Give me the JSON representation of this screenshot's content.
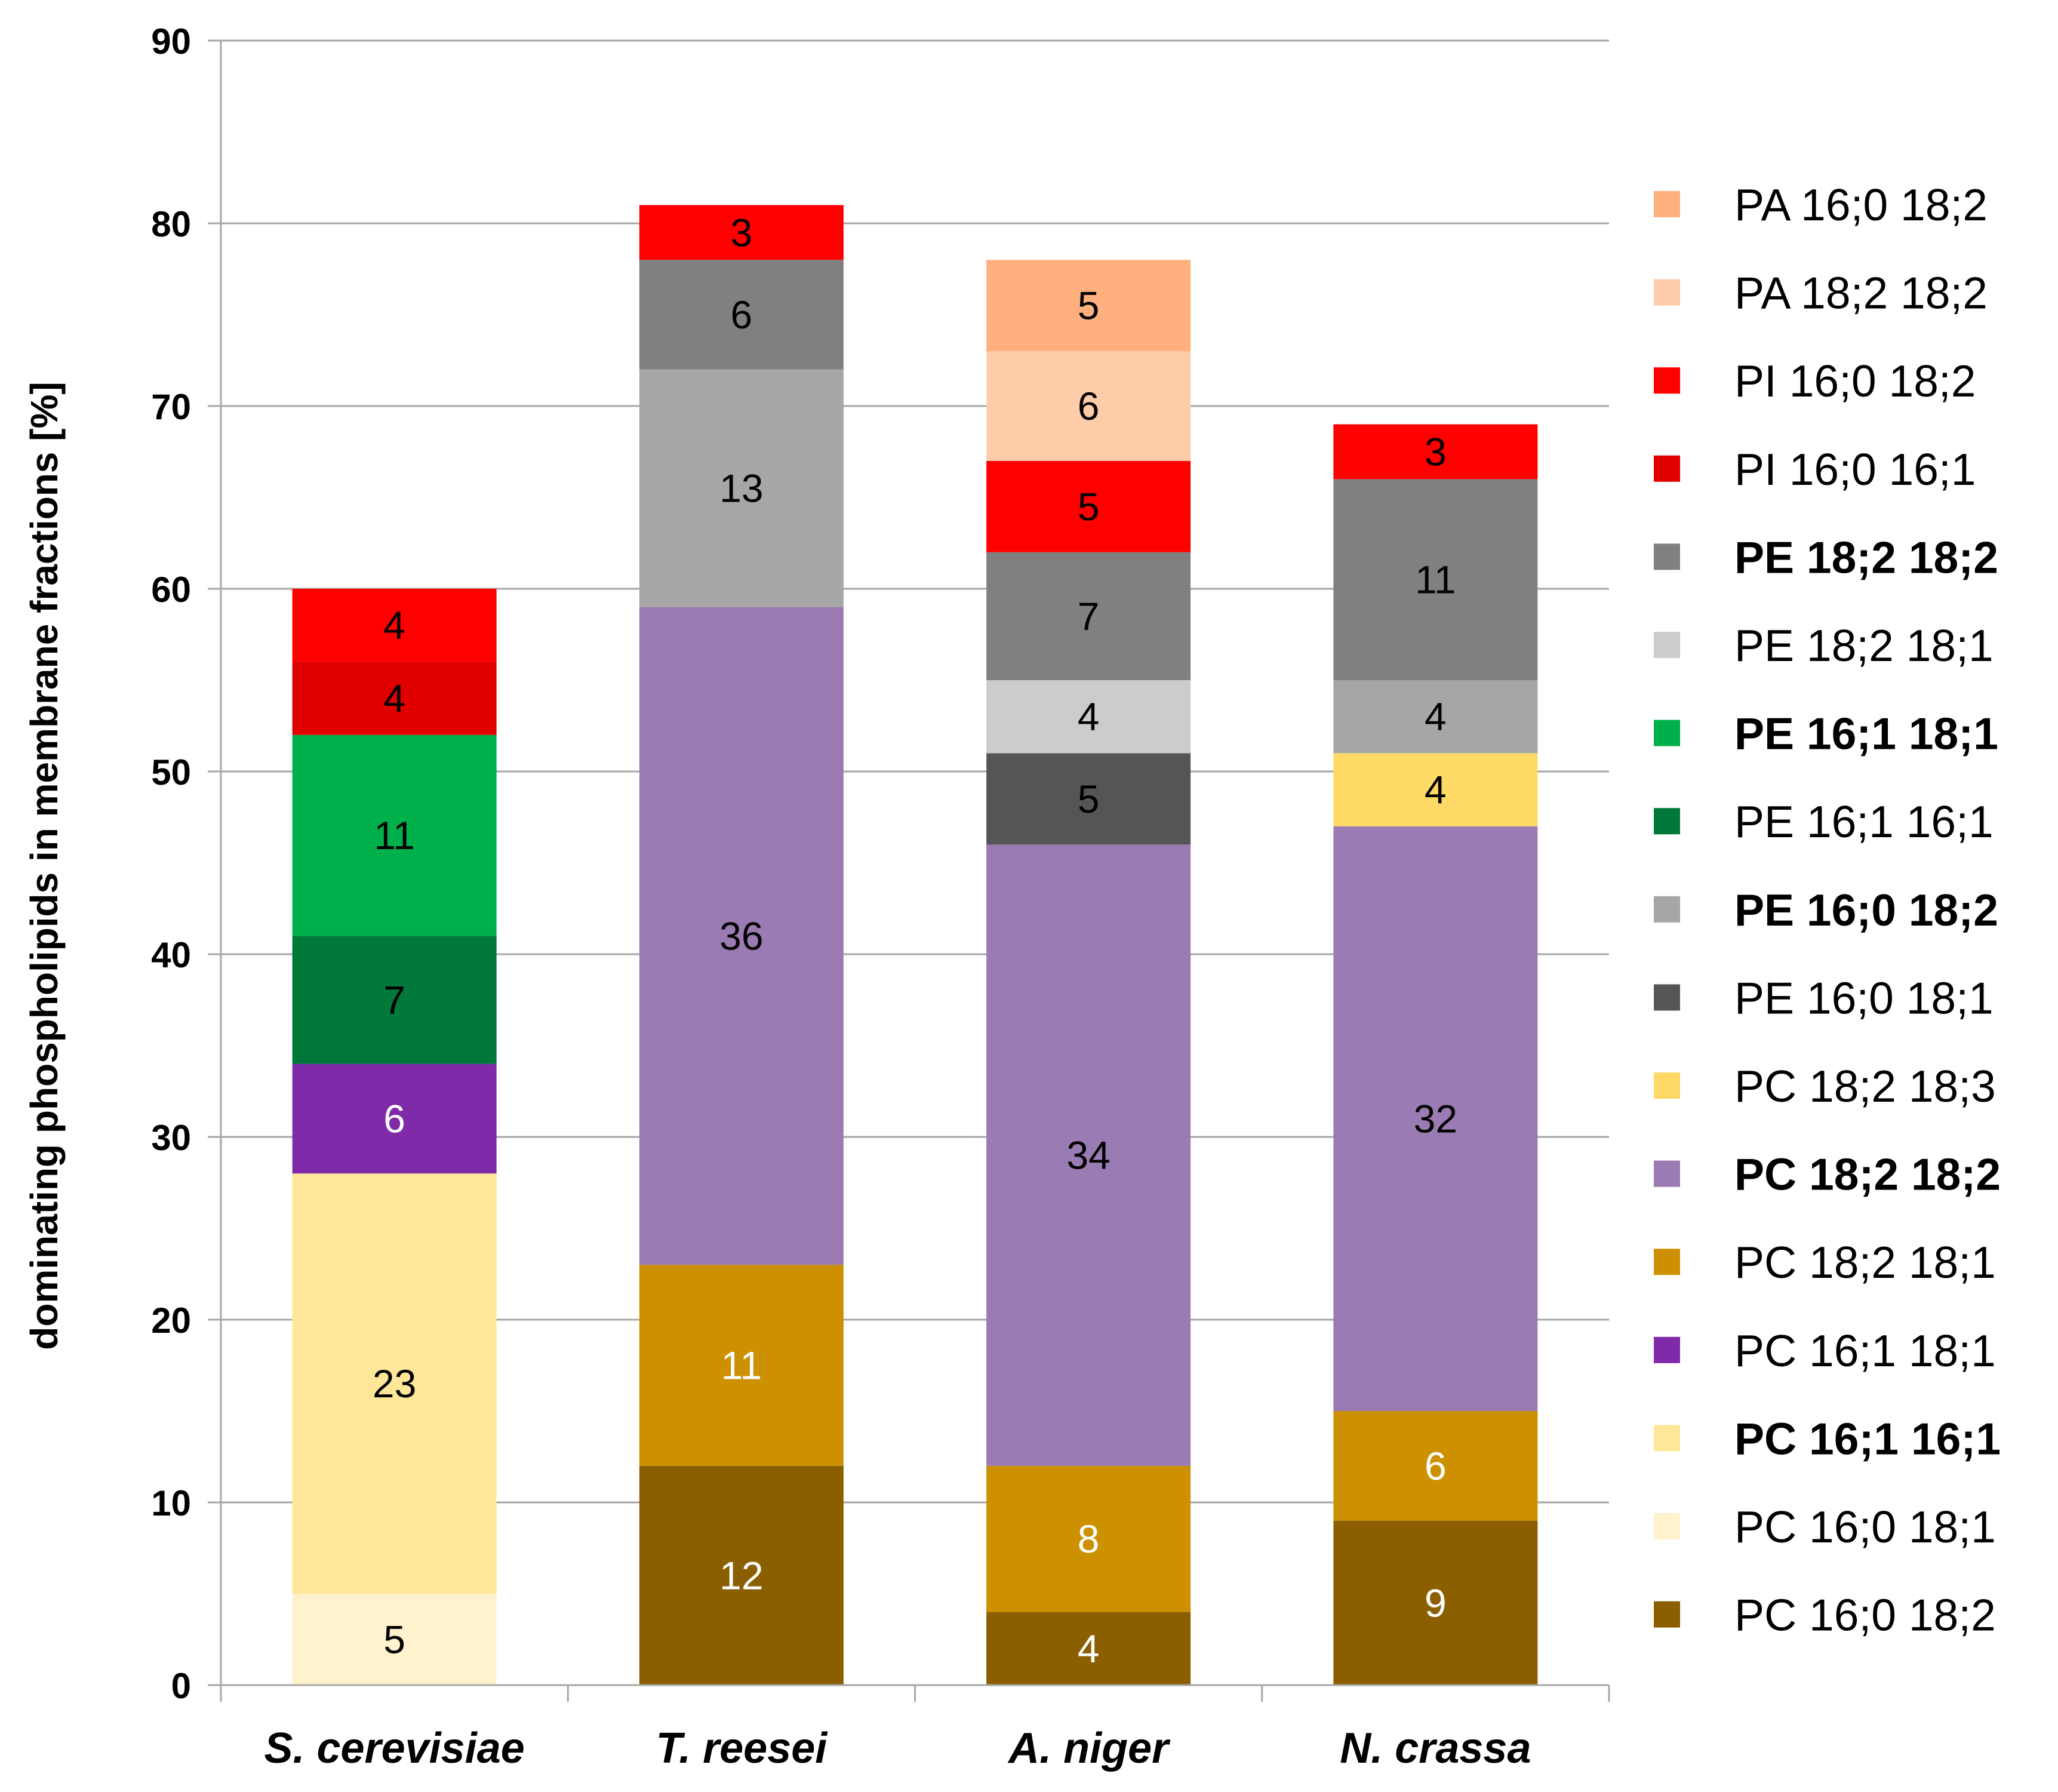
{
  "chart_data": {
    "type": "bar",
    "stacked": true,
    "title": "",
    "xlabel": "",
    "ylabel": "dominating phospholipids in  membrane fractions [%]",
    "ylim": [
      0,
      90
    ],
    "yticks": [
      0,
      10,
      20,
      30,
      40,
      50,
      60,
      70,
      80,
      90
    ],
    "grid": "horizontal",
    "legend_position": "right",
    "categories": [
      "S. cerevisiae",
      "T. reesei",
      "A. niger",
      "N. crassa"
    ],
    "series": [
      {
        "name": "PC 16;0 18;2",
        "color": "#8B5E00",
        "label_color": "#ffffff",
        "bold": false,
        "values": [
          0,
          12,
          4,
          9
        ]
      },
      {
        "name": "PC 16;0 18;1",
        "color": "#FFF2CC",
        "label_color": "#000000",
        "bold": false,
        "values": [
          5,
          0,
          0,
          0
        ]
      },
      {
        "name": "PC 16;1 16;1",
        "color": "#FFE699",
        "label_color": "#000000",
        "bold": true,
        "values": [
          23,
          0,
          0,
          0
        ]
      },
      {
        "name": "PC 16;1 18;1",
        "color": "#7F2AA8",
        "label_color": "#ffffff",
        "bold": false,
        "values": [
          6,
          0,
          0,
          0
        ]
      },
      {
        "name": "PC 18;2 18;1",
        "color": "#CC9000",
        "label_color": "#ffffff",
        "bold": false,
        "values": [
          0,
          11,
          8,
          6
        ]
      },
      {
        "name": "PC 18;2 18;2",
        "color": "#9A7BB3",
        "label_color": "#000000",
        "bold": true,
        "values": [
          0,
          36,
          34,
          32
        ]
      },
      {
        "name": "PC 18;2 18;3",
        "color": "#FFD966",
        "label_color": "#000000",
        "bold": false,
        "values": [
          0,
          0,
          0,
          4
        ]
      },
      {
        "name": "PE 16;0 18;1",
        "color": "#555555",
        "label_color": "#000000",
        "bold": false,
        "values": [
          0,
          0,
          5,
          0
        ]
      },
      {
        "name": "PE 16;0 18;2",
        "color": "#A6A6A6",
        "label_color": "#000000",
        "bold": true,
        "values": [
          0,
          13,
          0,
          4
        ]
      },
      {
        "name": "PE 16;1 16;1",
        "color": "#00783A",
        "label_color": "#000000",
        "bold": false,
        "values": [
          7,
          0,
          0,
          0
        ]
      },
      {
        "name": "PE 16;1 18;1",
        "color": "#00B04A",
        "label_color": "#000000",
        "bold": true,
        "values": [
          11,
          0,
          0,
          0
        ]
      },
      {
        "name": "PE 18;2 18;1",
        "color": "#CCCCCC",
        "label_color": "#000000",
        "bold": false,
        "values": [
          0,
          0,
          4,
          0
        ]
      },
      {
        "name": "PE 18;2 18;2",
        "color": "#808080",
        "label_color": "#000000",
        "bold": true,
        "values": [
          0,
          6,
          7,
          11
        ]
      },
      {
        "name": "PI 16;0 16;1",
        "color": "#E00000",
        "label_color": "#000000",
        "bold": false,
        "values": [
          4,
          0,
          0,
          0
        ]
      },
      {
        "name": "PI 16;0 18;2",
        "color": "#FF0000",
        "label_color": "#000000",
        "bold": false,
        "values": [
          4,
          3,
          5,
          3
        ]
      },
      {
        "name": "PA 18;2 18;2",
        "color": "#FFCCAA",
        "label_color": "#000000",
        "bold": false,
        "values": [
          0,
          0,
          6,
          0
        ]
      },
      {
        "name": "PA 16;0 18;2",
        "color": "#FFB07E",
        "label_color": "#000000",
        "bold": false,
        "values": [
          0,
          0,
          5,
          0
        ]
      }
    ]
  }
}
